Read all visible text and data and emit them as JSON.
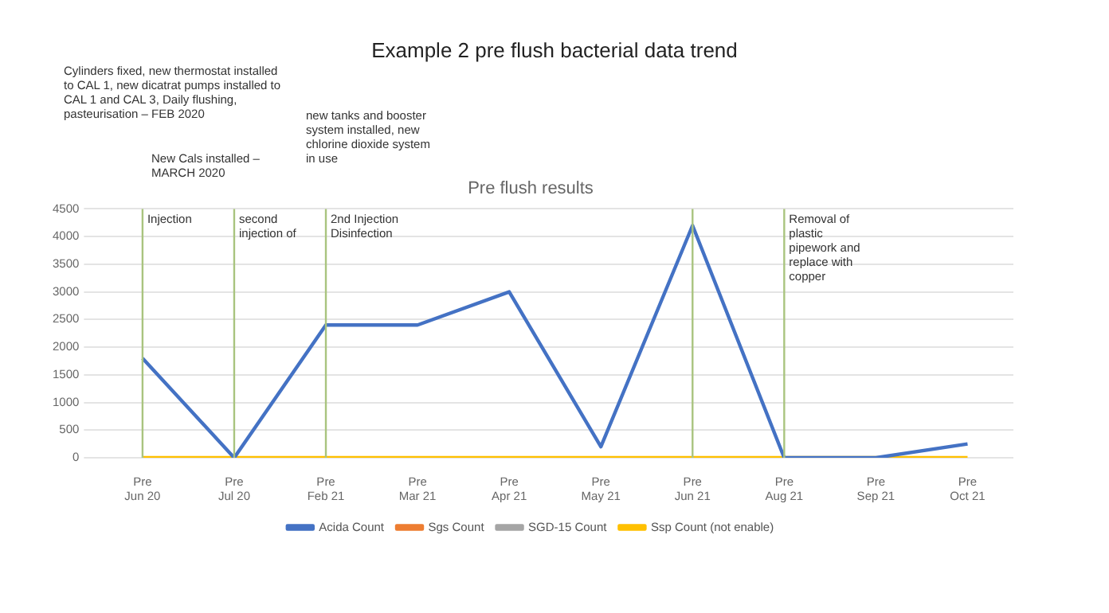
{
  "chart_data": {
    "type": "line",
    "title": "Example 2 pre flush bacterial data trend",
    "subtitle": "Pre flush results",
    "categories": [
      "Pre Jun 20",
      "Pre Jul 20",
      "Pre Feb 21",
      "Pre Mar 21",
      "Pre Apr 21",
      "Pre May 21",
      "Pre Jun 21",
      "Pre Aug 21",
      "Pre Sep 21",
      "Pre Oct 21"
    ],
    "series": [
      {
        "name": "Acida Count",
        "color": "#4472c4",
        "values": [
          1800,
          0,
          2400,
          2400,
          3000,
          200,
          4200,
          0,
          0,
          250
        ]
      },
      {
        "name": "Sgs Count",
        "color": "#ed7d31",
        "values": [
          null,
          null,
          null,
          null,
          null,
          null,
          null,
          null,
          null,
          null
        ]
      },
      {
        "name": "SGD-15 Count",
        "color": "#a5a5a5",
        "values": [
          null,
          null,
          null,
          null,
          null,
          null,
          null,
          null,
          null,
          null
        ]
      },
      {
        "name": "Ssp Count (not enable)",
        "color": "#ffc000",
        "values": [
          0,
          0,
          0,
          0,
          0,
          0,
          0,
          0,
          0,
          0
        ]
      }
    ],
    "ylim": [
      0,
      4500
    ],
    "yticks": [
      0,
      500,
      1000,
      1500,
      2000,
      2500,
      3000,
      3500,
      4000,
      4500
    ],
    "grid": "y",
    "legend": "bottom",
    "marker": "none",
    "line_style": "solid",
    "ref_lines": [
      {
        "axis": "x",
        "value": "Pre Jun 20",
        "label": "Injection",
        "color": "#a9c47f"
      },
      {
        "axis": "x",
        "value": "Pre Jul 20",
        "label": "second injection of",
        "color": "#a9c47f"
      },
      {
        "axis": "x",
        "value": "Pre Feb 21",
        "label": "2nd Injection Disinfection",
        "color": "#a9c47f"
      },
      {
        "axis": "x",
        "value": "Pre Jun 21",
        "label": null,
        "color": "#a9c47f"
      },
      {
        "axis": "x",
        "value": "Pre Aug 21",
        "label": "Removal of plastic pipework and replace with copper",
        "color": "#a9c47f"
      }
    ],
    "annotations": [
      "Cylinders fixed, new thermostat installed to CAL 1, new dicatrat pumps installed to CAL 1 and CAL 3, Daily flushing, pasteurisation – FEB 2020",
      "New Cals installed – MARCH 2020",
      "new tanks and booster system installed, new chlorine dioxide system in use"
    ]
  }
}
